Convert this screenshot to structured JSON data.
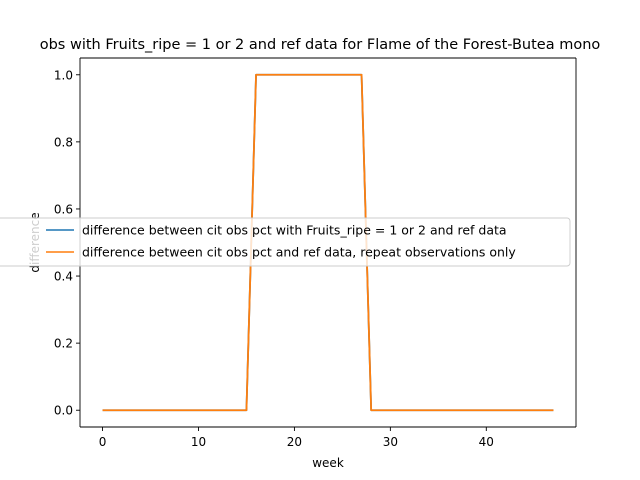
{
  "chart_data": {
    "type": "line",
    "title": "obs with Fruits_ripe = 1 or 2 and ref data for Flame of the Forest-Butea mono",
    "xlabel": "week",
    "ylabel": "difference",
    "xlim": [
      -2.35,
      49.35
    ],
    "ylim": [
      -0.05,
      1.05
    ],
    "xticks": [
      0,
      10,
      20,
      30,
      40
    ],
    "yticks": [
      0.0,
      0.2,
      0.4,
      0.6,
      0.8,
      1.0
    ],
    "xtick_labels": [
      "0",
      "10",
      "20",
      "30",
      "40"
    ],
    "ytick_labels": [
      "0.0",
      "0.2",
      "0.4",
      "0.6",
      "0.8",
      "1.0"
    ],
    "grid": false,
    "legend_position": "center-left",
    "x": [
      0,
      1,
      2,
      3,
      4,
      5,
      6,
      7,
      8,
      9,
      10,
      11,
      12,
      13,
      14,
      15,
      16,
      17,
      18,
      19,
      20,
      21,
      22,
      23,
      24,
      25,
      26,
      27,
      28,
      29,
      30,
      31,
      32,
      33,
      34,
      35,
      36,
      37,
      38,
      39,
      40,
      41,
      42,
      43,
      44,
      45,
      46,
      47
    ],
    "series": [
      {
        "name": "difference between cit obs pct with Fruits_ripe = 1 or 2 and ref data",
        "color": "#1f77b4",
        "values": [
          0,
          0,
          0,
          0,
          0,
          0,
          0,
          0,
          0,
          0,
          0,
          0,
          0,
          0,
          0,
          0,
          1,
          1,
          1,
          1,
          1,
          1,
          1,
          1,
          1,
          1,
          1,
          1,
          0,
          0,
          0,
          0,
          0,
          0,
          0,
          0,
          0,
          0,
          0,
          0,
          0,
          0,
          0,
          0,
          0,
          0,
          0,
          0
        ]
      },
      {
        "name": "difference between cit obs pct and ref data, repeat observations only",
        "color": "#ff7f0e",
        "values": [
          0,
          0,
          0,
          0,
          0,
          0,
          0,
          0,
          0,
          0,
          0,
          0,
          0,
          0,
          0,
          0,
          1,
          1,
          1,
          1,
          1,
          1,
          1,
          1,
          1,
          1,
          1,
          1,
          0,
          0,
          0,
          0,
          0,
          0,
          0,
          0,
          0,
          0,
          0,
          0,
          0,
          0,
          0,
          0,
          0,
          0,
          0,
          0
        ]
      }
    ]
  }
}
